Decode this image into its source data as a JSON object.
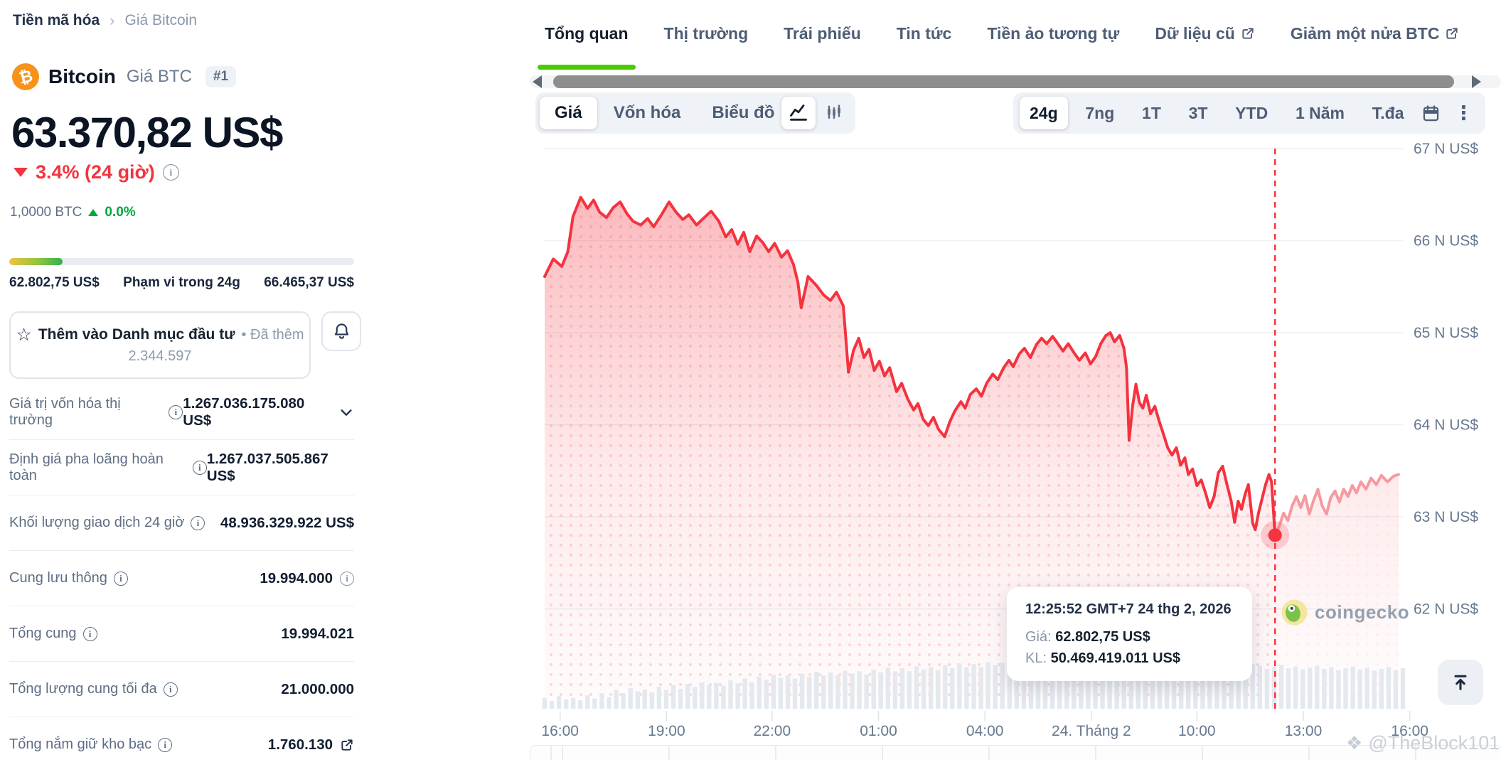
{
  "breadcrumb": {
    "items": [
      "Tiền mã hóa",
      "Giá Bitcoin"
    ]
  },
  "coin": {
    "name": "Bitcoin",
    "price_label": "Giá BTC",
    "rank": "#1",
    "symbol_glyph": "₿"
  },
  "price": {
    "value": "63.370,82 US$",
    "change": "3.4% (24 giờ)",
    "direction": "down",
    "btc_value": "1,0000 BTC",
    "btc_change": "0.0%",
    "btc_direction": "up"
  },
  "range24h": {
    "low": "62.802,75 US$",
    "label": "Phạm vi trong 24g",
    "high": "66.465,37 US$",
    "fill_pct": 15.5
  },
  "watchlist": {
    "label": "Thêm vào Danh mục đầu tư",
    "added_label": "Đã thêm",
    "count": "2.344.597"
  },
  "stats": {
    "rows": [
      {
        "label": "Giá trị vốn hóa thị trường",
        "value": "1.267.036.175.080 US$",
        "trailing": "chevron"
      },
      {
        "label": "Định giá pha loãng hoàn toàn",
        "value": "1.267.037.505.867 US$",
        "trailing": null
      },
      {
        "label": "Khối lượng giao dịch 24 giờ",
        "value": "48.936.329.922 US$",
        "trailing": null
      },
      {
        "label": "Cung lưu thông",
        "value": "19.994.000",
        "trailing": "info"
      },
      {
        "label": "Tổng cung",
        "value": "19.994.021",
        "trailing": null
      },
      {
        "label": "Tổng lượng cung tối đa",
        "value": "21.000.000",
        "trailing": null
      },
      {
        "label": "Tổng nắm giữ kho bạc",
        "value": "1.760.130",
        "trailing": "external"
      }
    ]
  },
  "tabs": {
    "items": [
      {
        "label": "Tổng quan",
        "active": true,
        "external": false
      },
      {
        "label": "Thị trường",
        "active": false,
        "external": false
      },
      {
        "label": "Trái phiếu",
        "active": false,
        "external": false
      },
      {
        "label": "Tin tức",
        "active": false,
        "external": false
      },
      {
        "label": "Tiền ảo tương tự",
        "active": false,
        "external": false
      },
      {
        "label": "Dữ liệu cũ",
        "active": false,
        "external": true
      },
      {
        "label": "Giảm một nửa BTC",
        "active": false,
        "external": true
      }
    ]
  },
  "controls": {
    "metric": [
      "Giá",
      "Vốn hóa",
      "Biểu đồ"
    ],
    "metric_active": "Giá",
    "chart_types": [
      "line",
      "candlestick"
    ],
    "chart_type_active": "line",
    "ranges": [
      "24g",
      "7ng",
      "1T",
      "3T",
      "YTD",
      "1 Năm",
      "T.đa"
    ],
    "range_active": "24g"
  },
  "tooltip": {
    "time": "12:25:52 GMT+7 24 thg 2, 2026",
    "price_label": "Giá:",
    "price": "62.802,75 US$",
    "volume_label": "KL:",
    "volume": "50.469.419.011 US$"
  },
  "attribution": "coingecko",
  "watermark": "@TheBlock101",
  "icons": {
    "star": "☆",
    "bullet": "•",
    "crumb_sep": "›",
    "kebab": "⋮",
    "diamond": "❖"
  },
  "colors": {
    "accent_green": "#4bcc00",
    "up_green": "#00a83e",
    "down_red": "#f4333f",
    "line_red": "#f4333f",
    "after_line_pink": "#f59aa0",
    "bitcoin_orange": "#f7931a",
    "dark_text": "#0c1524",
    "gray_text": "#5f6e84"
  },
  "chart_data": {
    "type": "area",
    "ylabel": "N US$",
    "ylim": [
      61.9,
      67.05
    ],
    "grid": true,
    "y_axis": {
      "ticks": [
        {
          "value": 67,
          "label": "67 N US$"
        },
        {
          "value": 66,
          "label": "66 N US$"
        },
        {
          "value": 65,
          "label": "65 N US$"
        },
        {
          "value": 64,
          "label": "64 N US$"
        },
        {
          "value": 63,
          "label": "63 N US$"
        },
        {
          "value": 62,
          "label": "62 N US$"
        }
      ]
    },
    "x_axis": {
      "ticks": [
        {
          "pos": 0.018,
          "label": "16:00"
        },
        {
          "pos": 0.142,
          "label": "19:00"
        },
        {
          "pos": 0.265,
          "label": "22:00"
        },
        {
          "pos": 0.389,
          "label": "01:00"
        },
        {
          "pos": 0.513,
          "label": "04:00"
        },
        {
          "pos": 0.637,
          "label": "24. Tháng 2"
        },
        {
          "pos": 0.76,
          "label": "10:00"
        },
        {
          "pos": 0.884,
          "label": "13:00"
        },
        {
          "pos": 1.008,
          "label": "16:00"
        }
      ]
    },
    "series_before": [
      [
        0.0,
        65.61
      ],
      [
        0.01,
        65.8
      ],
      [
        0.02,
        65.72
      ],
      [
        0.027,
        65.88
      ],
      [
        0.033,
        66.26
      ],
      [
        0.042,
        66.47
      ],
      [
        0.05,
        66.35
      ],
      [
        0.057,
        66.44
      ],
      [
        0.064,
        66.31
      ],
      [
        0.072,
        66.25
      ],
      [
        0.08,
        66.36
      ],
      [
        0.088,
        66.42
      ],
      [
        0.096,
        66.29
      ],
      [
        0.103,
        66.21
      ],
      [
        0.112,
        66.17
      ],
      [
        0.12,
        66.24
      ],
      [
        0.127,
        66.15
      ],
      [
        0.136,
        66.28
      ],
      [
        0.145,
        66.42
      ],
      [
        0.153,
        66.31
      ],
      [
        0.161,
        66.23
      ],
      [
        0.168,
        66.28
      ],
      [
        0.177,
        66.17
      ],
      [
        0.186,
        66.25
      ],
      [
        0.194,
        66.32
      ],
      [
        0.203,
        66.21
      ],
      [
        0.211,
        66.04
      ],
      [
        0.218,
        66.12
      ],
      [
        0.225,
        65.96
      ],
      [
        0.232,
        66.09
      ],
      [
        0.239,
        65.88
      ],
      [
        0.247,
        66.05
      ],
      [
        0.254,
        65.98
      ],
      [
        0.261,
        65.88
      ],
      [
        0.268,
        65.97
      ],
      [
        0.276,
        65.82
      ],
      [
        0.283,
        65.89
      ],
      [
        0.29,
        65.74
      ],
      [
        0.295,
        65.55
      ],
      [
        0.299,
        65.27
      ],
      [
        0.307,
        65.61
      ],
      [
        0.317,
        65.51
      ],
      [
        0.325,
        65.41
      ],
      [
        0.333,
        65.35
      ],
      [
        0.34,
        65.44
      ],
      [
        0.348,
        65.29
      ],
      [
        0.354,
        64.57
      ],
      [
        0.36,
        64.81
      ],
      [
        0.366,
        64.94
      ],
      [
        0.372,
        64.73
      ],
      [
        0.378,
        64.82
      ],
      [
        0.384,
        64.59
      ],
      [
        0.39,
        64.69
      ],
      [
        0.396,
        64.53
      ],
      [
        0.402,
        64.62
      ],
      [
        0.41,
        64.36
      ],
      [
        0.416,
        64.45
      ],
      [
        0.423,
        64.28
      ],
      [
        0.43,
        64.16
      ],
      [
        0.435,
        64.23
      ],
      [
        0.441,
        64.06
      ],
      [
        0.447,
        63.99
      ],
      [
        0.453,
        64.08
      ],
      [
        0.459,
        63.95
      ],
      [
        0.466,
        63.87
      ],
      [
        0.472,
        64.03
      ],
      [
        0.478,
        64.15
      ],
      [
        0.485,
        64.25
      ],
      [
        0.49,
        64.18
      ],
      [
        0.496,
        64.33
      ],
      [
        0.503,
        64.39
      ],
      [
        0.509,
        64.31
      ],
      [
        0.515,
        64.45
      ],
      [
        0.522,
        64.55
      ],
      [
        0.528,
        64.49
      ],
      [
        0.535,
        64.62
      ],
      [
        0.541,
        64.7
      ],
      [
        0.546,
        64.63
      ],
      [
        0.553,
        64.77
      ],
      [
        0.559,
        64.83
      ],
      [
        0.566,
        64.73
      ],
      [
        0.573,
        64.87
      ],
      [
        0.579,
        64.94
      ],
      [
        0.585,
        64.88
      ],
      [
        0.592,
        64.96
      ],
      [
        0.598,
        64.88
      ],
      [
        0.604,
        64.8
      ],
      [
        0.61,
        64.88
      ],
      [
        0.617,
        64.78
      ],
      [
        0.623,
        64.7
      ],
      [
        0.63,
        64.78
      ],
      [
        0.636,
        64.66
      ],
      [
        0.642,
        64.74
      ],
      [
        0.648,
        64.88
      ],
      [
        0.654,
        64.97
      ],
      [
        0.659,
        65.0
      ],
      [
        0.664,
        64.9
      ],
      [
        0.67,
        64.97
      ],
      [
        0.675,
        64.83
      ],
      [
        0.678,
        64.62
      ],
      [
        0.681,
        63.83
      ],
      [
        0.685,
        64.2
      ],
      [
        0.689,
        64.44
      ],
      [
        0.693,
        64.24
      ],
      [
        0.697,
        64.18
      ],
      [
        0.701,
        64.32
      ],
      [
        0.706,
        64.12
      ],
      [
        0.711,
        64.2
      ],
      [
        0.716,
        64.04
      ],
      [
        0.721,
        63.9
      ],
      [
        0.726,
        63.75
      ],
      [
        0.731,
        63.67
      ],
      [
        0.736,
        63.75
      ],
      [
        0.741,
        63.56
      ],
      [
        0.746,
        63.64
      ],
      [
        0.75,
        63.46
      ],
      [
        0.755,
        63.52
      ],
      [
        0.76,
        63.34
      ],
      [
        0.765,
        63.4
      ],
      [
        0.77,
        63.26
      ],
      [
        0.775,
        63.1
      ],
      [
        0.78,
        63.22
      ],
      [
        0.785,
        63.48
      ],
      [
        0.79,
        63.55
      ],
      [
        0.795,
        63.35
      ],
      [
        0.8,
        63.17
      ],
      [
        0.804,
        62.94
      ],
      [
        0.808,
        63.17
      ],
      [
        0.812,
        63.08
      ],
      [
        0.816,
        63.24
      ],
      [
        0.82,
        63.35
      ],
      [
        0.825,
        62.93
      ],
      [
        0.828,
        62.86
      ],
      [
        0.832,
        63.05
      ],
      [
        0.836,
        63.2
      ],
      [
        0.84,
        63.35
      ],
      [
        0.844,
        63.46
      ],
      [
        0.847,
        63.38
      ],
      [
        0.851,
        62.8
      ]
    ],
    "series_after": [
      [
        0.851,
        62.8
      ],
      [
        0.856,
        62.9
      ],
      [
        0.861,
        63.04
      ],
      [
        0.866,
        62.96
      ],
      [
        0.871,
        63.12
      ],
      [
        0.876,
        63.22
      ],
      [
        0.881,
        63.1
      ],
      [
        0.886,
        63.23
      ],
      [
        0.891,
        63.03
      ],
      [
        0.896,
        63.18
      ],
      [
        0.901,
        63.3
      ],
      [
        0.906,
        63.12
      ],
      [
        0.911,
        63.03
      ],
      [
        0.916,
        63.21
      ],
      [
        0.921,
        63.28
      ],
      [
        0.926,
        63.16
      ],
      [
        0.931,
        63.3
      ],
      [
        0.936,
        63.22
      ],
      [
        0.941,
        63.34
      ],
      [
        0.946,
        63.26
      ],
      [
        0.951,
        63.38
      ],
      [
        0.957,
        63.3
      ],
      [
        0.963,
        63.42
      ],
      [
        0.969,
        63.35
      ],
      [
        0.975,
        63.45
      ],
      [
        0.982,
        63.38
      ],
      [
        0.989,
        63.44
      ],
      [
        0.995,
        63.46
      ]
    ],
    "marker": {
      "pos": 0.851,
      "price": 62.8
    },
    "volume_rel": [
      0.18,
      0.13,
      0.21,
      0.16,
      0.18,
      0.14,
      0.22,
      0.17,
      0.25,
      0.19,
      0.31,
      0.26,
      0.34,
      0.29,
      0.32,
      0.27,
      0.36,
      0.31,
      0.39,
      0.33,
      0.41,
      0.36,
      0.44,
      0.39,
      0.43,
      0.38,
      0.47,
      0.42,
      0.5,
      0.44,
      0.53,
      0.48,
      0.56,
      0.51,
      0.55,
      0.5,
      0.58,
      0.53,
      0.61,
      0.55,
      0.6,
      0.55,
      0.63,
      0.58,
      0.62,
      0.57,
      0.65,
      0.6,
      0.68,
      0.62,
      0.67,
      0.62,
      0.7,
      0.65,
      0.69,
      0.64,
      0.72,
      0.67,
      0.75,
      0.69,
      0.74,
      0.69,
      0.77,
      0.72,
      0.76,
      0.71,
      0.79,
      0.74,
      0.82,
      0.76,
      0.81,
      0.76,
      0.84,
      0.79,
      0.88,
      0.83,
      0.93,
      0.86,
      0.9,
      0.84,
      0.86,
      0.81,
      0.84,
      0.79,
      0.82,
      0.77,
      0.8,
      0.75,
      0.78,
      0.73,
      0.76,
      0.71,
      0.74,
      0.69,
      0.72,
      0.67,
      0.7,
      0.72,
      0.68,
      0.74,
      0.71,
      0.66,
      0.69,
      0.73,
      0.67,
      0.7,
      0.65,
      0.68,
      0.71,
      0.66,
      0.69,
      0.64,
      0.67,
      0.7,
      0.65,
      0.68,
      0.63,
      0.66,
      0.69,
      0.64,
      0.67
    ]
  }
}
